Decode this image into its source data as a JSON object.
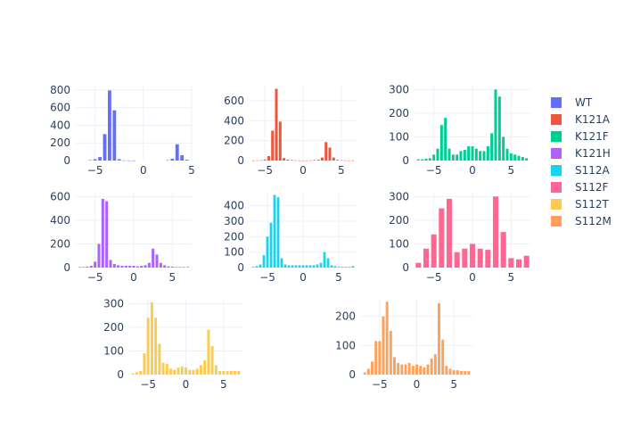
{
  "chart_data": {
    "type": "bar",
    "layout": "histogram grid, one subplot per series",
    "legend_position": "right",
    "grid": true,
    "series": [
      {
        "name": "WT",
        "color": "#636efa",
        "xlim": [
          -7,
          5
        ],
        "ylim": [
          0,
          860
        ],
        "xticks": [
          -5,
          0,
          5
        ],
        "yticks": [
          0,
          200,
          400,
          600,
          800
        ],
        "x": [
          -5.5,
          -5,
          -4.5,
          -4,
          -3.5,
          -3,
          -2.5,
          -2,
          -1.5,
          -1,
          -0.5,
          0,
          0.5,
          1,
          1.5,
          2,
          2.5,
          3,
          3.5,
          4,
          4.5
        ],
        "values": [
          5,
          15,
          40,
          300,
          795,
          570,
          15,
          2,
          1,
          1,
          0,
          0,
          0,
          0,
          0,
          0,
          4,
          20,
          185,
          60,
          10
        ]
      },
      {
        "name": "K121A",
        "color": "#EF553B",
        "xlim": [
          -7,
          7
        ],
        "ylim": [
          0,
          760
        ],
        "xticks": [
          -5,
          0,
          5
        ],
        "yticks": [
          0,
          200,
          400,
          600
        ],
        "x": [
          -6.5,
          -6,
          -5.5,
          -5,
          -4.5,
          -4,
          -3.5,
          -3,
          -2.5,
          -2,
          -1.5,
          -1,
          -0.5,
          0,
          0.5,
          1,
          1.5,
          2,
          2.5,
          3,
          3.5,
          4,
          4.5,
          5,
          5.5,
          6,
          6.5
        ],
        "values": [
          1,
          2,
          3,
          10,
          45,
          300,
          720,
          390,
          25,
          10,
          5,
          2,
          1,
          1,
          1,
          2,
          5,
          8,
          30,
          185,
          130,
          30,
          8,
          3,
          2,
          1,
          1
        ]
      },
      {
        "name": "K121F",
        "color": "#00cc96",
        "xlim": [
          -7.5,
          7.5
        ],
        "ylim": [
          0,
          320
        ],
        "xticks": [
          -5,
          0,
          5
        ],
        "yticks": [
          0,
          100,
          200,
          300
        ],
        "x": [
          -7,
          -6.5,
          -6,
          -5.5,
          -5,
          -4.5,
          -4,
          -3.5,
          -3,
          -2.5,
          -2,
          -1.5,
          -1,
          -0.5,
          0,
          0.5,
          1,
          1.5,
          2,
          2.5,
          3,
          3.5,
          4,
          4.5,
          5,
          5.5,
          6,
          6.5,
          7
        ],
        "values": [
          5,
          5,
          8,
          10,
          25,
          50,
          150,
          180,
          50,
          25,
          25,
          40,
          45,
          60,
          60,
          50,
          40,
          40,
          60,
          115,
          300,
          270,
          100,
          50,
          30,
          25,
          20,
          15,
          10
        ]
      },
      {
        "name": "K121H",
        "color": "#ab63fa",
        "xlim": [
          -7.5,
          7.5
        ],
        "ylim": [
          0,
          640
        ],
        "xticks": [
          -5,
          0,
          5
        ],
        "yticks": [
          0,
          200,
          400,
          600
        ],
        "x": [
          -7,
          -6.5,
          -6,
          -5.5,
          -5,
          -4.5,
          -4,
          -3.5,
          -3,
          -2.5,
          -2,
          -1.5,
          -1,
          -0.5,
          0,
          0.5,
          1,
          1.5,
          2,
          2.5,
          3,
          3.5,
          4,
          4.5,
          5,
          5.5,
          6,
          6.5,
          7
        ],
        "values": [
          5,
          5,
          8,
          15,
          50,
          200,
          580,
          560,
          65,
          30,
          20,
          15,
          15,
          15,
          15,
          10,
          15,
          20,
          40,
          160,
          110,
          40,
          20,
          10,
          8,
          5,
          5,
          5,
          5
        ]
      },
      {
        "name": "S112A",
        "color": "#19d3f3",
        "xlim": [
          -7.5,
          7.5
        ],
        "ylim": [
          0,
          490
        ],
        "xticks": [
          -5,
          0,
          5
        ],
        "yticks": [
          0,
          100,
          200,
          300,
          400
        ],
        "x": [
          -7,
          -6.5,
          -6,
          -5.5,
          -5,
          -4.5,
          -4,
          -3.5,
          -3,
          -2.5,
          -2,
          -1.5,
          -1,
          -0.5,
          0,
          0.5,
          1,
          1.5,
          2,
          2.5,
          3,
          3.5,
          4,
          4.5,
          5,
          5.5,
          6,
          6.5,
          7
        ],
        "values": [
          5,
          10,
          20,
          80,
          200,
          290,
          470,
          455,
          60,
          20,
          15,
          15,
          15,
          15,
          15,
          15,
          15,
          15,
          20,
          30,
          100,
          60,
          15,
          10,
          5,
          5,
          5,
          5,
          10
        ]
      },
      {
        "name": "S112F",
        "color": "#FF6692",
        "xlim": [
          -7.5,
          7.5
        ],
        "ylim": [
          0,
          320
        ],
        "xticks": [
          -5,
          0,
          5
        ],
        "yticks": [
          0,
          100,
          200,
          300
        ],
        "x": [
          -7,
          -6,
          -5,
          -4,
          -3,
          -2,
          -1,
          0,
          1,
          2,
          3,
          4,
          5,
          6,
          7
        ],
        "values": [
          20,
          80,
          140,
          250,
          290,
          65,
          80,
          100,
          80,
          75,
          300,
          150,
          40,
          35,
          50
        ]
      },
      {
        "name": "S112T",
        "color": "#FECB52",
        "xlim": [
          -7.5,
          7.5
        ],
        "ylim": [
          0,
          320
        ],
        "xticks": [
          -5,
          0,
          5
        ],
        "yticks": [
          0,
          100,
          200,
          300
        ],
        "x": [
          -7,
          -6.5,
          -6,
          -5.5,
          -5,
          -4.5,
          -4,
          -3.5,
          -3,
          -2.5,
          -2,
          -1.5,
          -1,
          -0.5,
          0,
          0.5,
          1,
          1.5,
          2,
          2.5,
          3,
          3.5,
          4,
          4.5,
          5,
          5.5,
          6,
          6.5,
          7
        ],
        "values": [
          5,
          10,
          15,
          90,
          240,
          305,
          240,
          130,
          50,
          45,
          25,
          20,
          30,
          35,
          30,
          20,
          20,
          25,
          40,
          60,
          190,
          120,
          40,
          15,
          15,
          15,
          15,
          15,
          15
        ]
      },
      {
        "name": "S112M",
        "color": "#FFA15A",
        "xlim": [
          -7.5,
          7.5
        ],
        "ylim": [
          0,
          260
        ],
        "xticks": [
          -5,
          0,
          5
        ],
        "yticks": [
          0,
          100,
          200
        ],
        "x": [
          -7,
          -6.5,
          -6,
          -5.5,
          -5,
          -4.5,
          -4,
          -3.5,
          -3,
          -2.5,
          -2,
          -1.5,
          -1,
          -0.5,
          0,
          0.5,
          1,
          1.5,
          2,
          2.5,
          3,
          3.5,
          4,
          4.5,
          5,
          5.5,
          6,
          6.5,
          7
        ],
        "values": [
          8,
          20,
          45,
          115,
          115,
          200,
          250,
          150,
          60,
          40,
          35,
          35,
          40,
          30,
          35,
          30,
          25,
          35,
          55,
          70,
          245,
          120,
          30,
          20,
          15,
          15,
          12,
          12,
          12
        ]
      }
    ]
  }
}
